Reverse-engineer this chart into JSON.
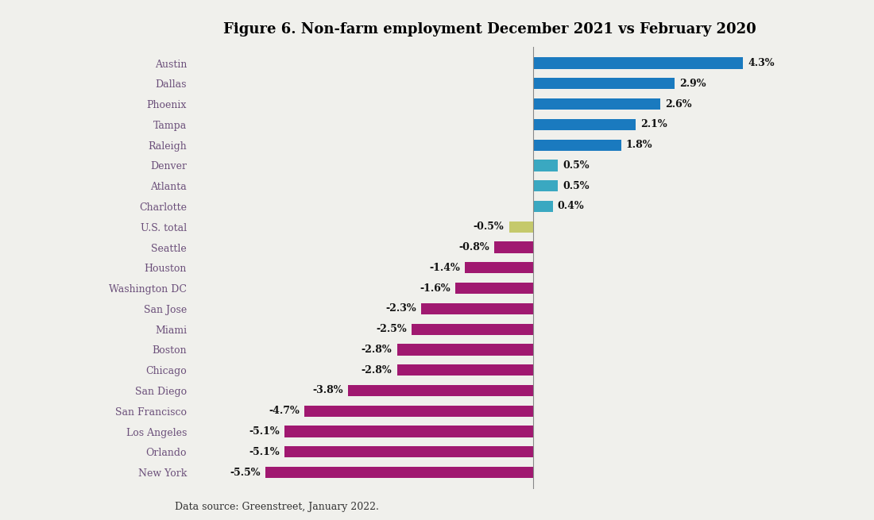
{
  "title": "Figure 6. Non-farm employment December 2021 vs February 2020",
  "categories": [
    "Austin",
    "Dallas",
    "Phoenix",
    "Tampa",
    "Raleigh",
    "Denver",
    "Atlanta",
    "Charlotte",
    "U.S. total",
    "Seattle",
    "Houston",
    "Washington DC",
    "San Jose",
    "Miami",
    "Boston",
    "Chicago",
    "San Diego",
    "San Francisco",
    "Los Angeles",
    "Orlando",
    "New York"
  ],
  "values": [
    4.3,
    2.9,
    2.6,
    2.1,
    1.8,
    0.5,
    0.5,
    0.4,
    -0.5,
    -0.8,
    -1.4,
    -1.6,
    -2.3,
    -2.5,
    -2.8,
    -2.8,
    -3.8,
    -4.7,
    -5.1,
    -5.1,
    -5.5
  ],
  "bar_colors": {
    "positive_large": "#1a7abf",
    "positive_small": "#3aa8c1",
    "us_total": "#c5c96b",
    "negative": "#a01870"
  },
  "color_thresholds": {
    "large_positive": 1.5,
    "small_positive": 0.0
  },
  "xlim": [
    -7.0,
    5.2
  ],
  "title_fontsize": 13,
  "label_fontsize": 9,
  "value_fontsize": 9,
  "footnote": "Data source: Greenstreet, January 2022.",
  "footnote_fontsize": 9,
  "background_color": "#f0f0ec",
  "label_color": "#6b4f7a",
  "value_color": "#111111",
  "bar_height": 0.55,
  "zero_line_x": 0
}
